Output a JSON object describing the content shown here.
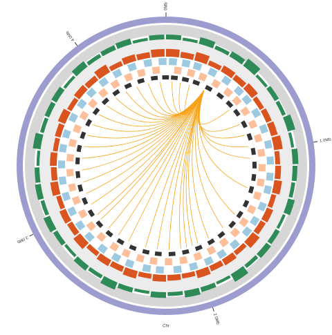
{
  "chart_data": {
    "type": "circos",
    "xlabel": "Chr",
    "xlim": [
      0,
      4.45
    ],
    "xticks": [
      {
        "value": 0,
        "label": "0Mb"
      },
      {
        "value": 1,
        "label": "1.0Mb"
      },
      {
        "value": 2,
        "label": "2.0Mb"
      },
      {
        "value": 3,
        "label": "3.0Mb"
      },
      {
        "value": 4,
        "label": "4.0Mb"
      }
    ],
    "ideogram_color": "#9d9ccf",
    "ylim": [
      0,
      1
    ],
    "histograms": [
      {
        "color": "#2e8b57",
        "values": [
          0.5,
          0.3,
          0.7,
          0.4,
          0.6,
          0.9,
          0.3,
          0.5,
          0.4,
          0.8,
          0.3,
          0.6,
          0.5,
          0.4,
          0.7,
          0.3,
          0.5,
          0.6,
          0.4,
          0.9,
          0.3,
          0.5,
          0.7,
          0.4,
          0.6,
          0.3,
          0.5,
          0.8,
          0.4,
          0.6,
          0.3,
          0.5,
          0.7,
          0.4,
          0.6,
          0.5,
          0.3,
          0.8,
          0.4,
          0.5,
          0.6,
          0.3,
          0.7,
          0.4,
          0.5,
          0.6,
          0.3,
          0.5
        ]
      },
      {
        "color": "#d9541e",
        "values": [
          0.8,
          0.6,
          0.9,
          0.5,
          0.7,
          0.6,
          0.8,
          0.5,
          0.6,
          0.7,
          0.9,
          0.5,
          0.6,
          0.8,
          0.5,
          0.7,
          0.6,
          0.9,
          0.5,
          0.7,
          0.6,
          0.8,
          0.5,
          0.6,
          0.7,
          0.5,
          0.8,
          0.6,
          0.7,
          0.5,
          0.9,
          0.6,
          0.7,
          0.5,
          0.8,
          0.6,
          0.7,
          0.5,
          0.6,
          0.8,
          0.5,
          0.7,
          0.6,
          0.9,
          0.5,
          0.7,
          0.6,
          0.8
        ]
      }
    ],
    "gene_tracks": [
      {
        "color": "#9ecae1",
        "x": [
          0.02,
          0.11,
          0.19,
          0.3,
          0.41,
          0.52,
          0.6,
          0.71,
          0.83,
          0.94,
          1.05,
          1.16,
          1.25,
          1.37,
          1.48,
          1.57,
          1.69,
          1.8,
          1.9,
          2.01,
          2.12,
          2.24,
          2.33,
          2.45,
          2.55,
          2.66,
          2.78,
          2.88,
          2.99,
          3.1,
          3.21,
          3.32,
          3.43,
          3.53,
          3.65,
          3.76,
          3.86,
          3.97,
          4.08,
          4.19,
          4.3,
          4.4
        ]
      },
      {
        "color": "#fcbf9a",
        "x": [
          0.06,
          0.16,
          0.25,
          0.36,
          0.47,
          0.56,
          0.66,
          0.77,
          0.88,
          0.99,
          1.1,
          1.21,
          1.31,
          1.42,
          1.53,
          1.63,
          1.74,
          1.85,
          1.96,
          2.07,
          2.18,
          2.29,
          2.39,
          2.5,
          2.6,
          2.72,
          2.83,
          2.94,
          3.05,
          3.15,
          3.26,
          3.37,
          3.48,
          3.59,
          3.7,
          3.81,
          3.92,
          4.03,
          4.14,
          4.24,
          4.35
        ]
      },
      {
        "color": "#333333",
        "x": [
          0.04,
          0.13,
          0.22,
          0.33,
          0.44,
          0.54,
          0.63,
          0.74,
          0.85,
          0.97,
          1.08,
          1.18,
          1.28,
          1.4,
          1.5,
          1.6,
          1.72,
          1.82,
          1.93,
          2.04,
          2.15,
          2.26,
          2.36,
          2.47,
          2.58,
          2.69,
          2.8,
          2.91,
          3.02,
          3.13,
          3.24,
          3.35,
          3.45,
          3.56,
          3.67,
          3.78,
          3.89,
          4.0,
          4.11,
          4.22,
          4.33,
          4.42
        ]
      }
    ],
    "links": {
      "color": "#f5a31a",
      "source": 0.33,
      "targets": [
        0.05,
        0.12,
        0.2,
        0.6,
        0.75,
        0.85,
        0.95,
        1.05,
        1.3,
        1.55,
        1.7,
        1.85,
        1.95,
        2.0,
        2.05,
        2.1,
        2.2,
        2.3,
        2.4,
        2.55,
        2.65,
        2.75,
        2.85,
        2.9,
        3.0,
        3.1,
        3.2,
        3.3,
        3.4,
        3.5,
        3.6,
        3.7,
        3.8,
        3.9,
        4.0,
        4.1,
        4.2,
        4.3,
        4.4
      ]
    }
  }
}
